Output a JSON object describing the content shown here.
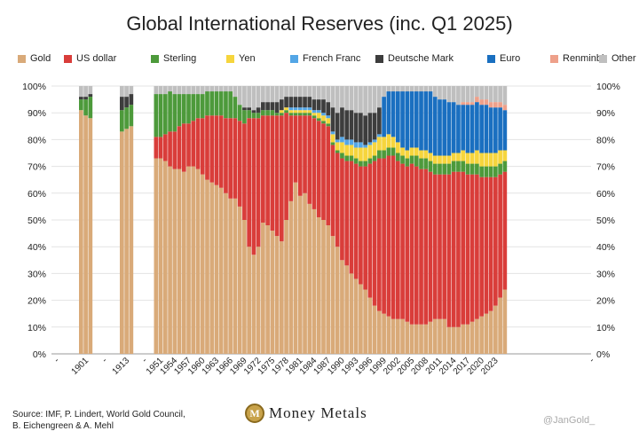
{
  "chart_data": {
    "type": "bar",
    "stacked": true,
    "title": "Global International Reserves (inc. Q1 2025)",
    "ylim": [
      0,
      100
    ],
    "y_ticks": [
      "0%",
      "10%",
      "20%",
      "30%",
      "40%",
      "50%",
      "60%",
      "70%",
      "80%",
      "90%",
      "100%"
    ],
    "x_tick_labels": [
      "-",
      "1901",
      "-",
      "1913",
      "-",
      "1951",
      "1954",
      "1957",
      "1960",
      "1963",
      "1966",
      "1969",
      "1972",
      "1975",
      "1978",
      "1981",
      "1984",
      "1987",
      "1990",
      "1993",
      "1996",
      "1999",
      "2002",
      "2005",
      "2008",
      "2011",
      "2014",
      "2017",
      "2020",
      "2023",
      "-"
    ],
    "legend_position": "top",
    "grid": true,
    "series": [
      {
        "name": "Gold",
        "color": "#d9aa79"
      },
      {
        "name": "US dollar",
        "color": "#d93d3a"
      },
      {
        "name": "Sterling",
        "color": "#4d9a3b"
      },
      {
        "name": "Yen",
        "color": "#f6d53d"
      },
      {
        "name": "French Franc",
        "color": "#53a6e6"
      },
      {
        "name": "Deutsche Mark",
        "color": "#3d3d3d"
      },
      {
        "name": "Euro",
        "color": "#1a6fc0"
      },
      {
        "name": "Renminbi",
        "color": "#eea08a"
      },
      {
        "name": "Other",
        "color": "#bfbfbf"
      }
    ],
    "bars": [
      {
        "year": 1899,
        "values": [
          91,
          0,
          4,
          0,
          0,
          1,
          0,
          0,
          4
        ]
      },
      {
        "year": 1900,
        "values": [
          89,
          0,
          6,
          0,
          0,
          1,
          0,
          0,
          4
        ]
      },
      {
        "year": 1901,
        "values": [
          88,
          0,
          8,
          0,
          0,
          1,
          0,
          0,
          3
        ]
      },
      {
        "year": 1911,
        "values": [
          83,
          0,
          8,
          0,
          0,
          5,
          0,
          0,
          4
        ]
      },
      {
        "year": 1912,
        "values": [
          84,
          0,
          8,
          0,
          0,
          4,
          0,
          0,
          4
        ]
      },
      {
        "year": 1913,
        "values": [
          85,
          0,
          8,
          0,
          0,
          4,
          0,
          0,
          3
        ]
      },
      {
        "year": 1950,
        "values": [
          73,
          8,
          16,
          0,
          0,
          0,
          0,
          0,
          3
        ]
      },
      {
        "year": 1951,
        "values": [
          73,
          8,
          16,
          0,
          0,
          0,
          0,
          0,
          3
        ]
      },
      {
        "year": 1952,
        "values": [
          72,
          10,
          15,
          0,
          0,
          0,
          0,
          0,
          3
        ]
      },
      {
        "year": 1953,
        "values": [
          70,
          13,
          15,
          0,
          0,
          0,
          0,
          0,
          2
        ]
      },
      {
        "year": 1954,
        "values": [
          69,
          14,
          14,
          0,
          0,
          0,
          0,
          0,
          3
        ]
      },
      {
        "year": 1955,
        "values": [
          69,
          16,
          12,
          0,
          0,
          0,
          0,
          0,
          3
        ]
      },
      {
        "year": 1956,
        "values": [
          68,
          18,
          11,
          0,
          0,
          0,
          0,
          0,
          3
        ]
      },
      {
        "year": 1957,
        "values": [
          70,
          16,
          11,
          0,
          0,
          0,
          0,
          0,
          3
        ]
      },
      {
        "year": 1958,
        "values": [
          70,
          17,
          10,
          0,
          0,
          0,
          0,
          0,
          3
        ]
      },
      {
        "year": 1959,
        "values": [
          69,
          19,
          9,
          0,
          0,
          0,
          0,
          0,
          3
        ]
      },
      {
        "year": 1960,
        "values": [
          67,
          21,
          9,
          0,
          0,
          0,
          0,
          0,
          3
        ]
      },
      {
        "year": 1961,
        "values": [
          65,
          24,
          9,
          0,
          0,
          0,
          0,
          0,
          2
        ]
      },
      {
        "year": 1962,
        "values": [
          64,
          25,
          9,
          0,
          0,
          0,
          0,
          0,
          2
        ]
      },
      {
        "year": 1963,
        "values": [
          63,
          26,
          9,
          0,
          0,
          0,
          0,
          0,
          2
        ]
      },
      {
        "year": 1964,
        "values": [
          62,
          27,
          9,
          0,
          0,
          0,
          0,
          0,
          2
        ]
      },
      {
        "year": 1965,
        "values": [
          60,
          28,
          10,
          0,
          0,
          0,
          0,
          0,
          2
        ]
      },
      {
        "year": 1966,
        "values": [
          58,
          30,
          10,
          0,
          0,
          0,
          0,
          0,
          2
        ]
      },
      {
        "year": 1967,
        "values": [
          58,
          30,
          8,
          0,
          0,
          0,
          0,
          0,
          4
        ]
      },
      {
        "year": 1968,
        "values": [
          55,
          32,
          6,
          0,
          0,
          0,
          0,
          0,
          7
        ]
      },
      {
        "year": 1969,
        "values": [
          50,
          36,
          5,
          0,
          0,
          1,
          0,
          0,
          8
        ]
      },
      {
        "year": 1970,
        "values": [
          40,
          48,
          3,
          0,
          0,
          1,
          0,
          0,
          8
        ]
      },
      {
        "year": 1971,
        "values": [
          37,
          51,
          2,
          0,
          0,
          1,
          0,
          0,
          9
        ]
      },
      {
        "year": 1972,
        "values": [
          40,
          48,
          2,
          0,
          0,
          2,
          0,
          0,
          8
        ]
      },
      {
        "year": 1973,
        "values": [
          49,
          40,
          2,
          0,
          0,
          3,
          0,
          0,
          6
        ]
      },
      {
        "year": 1974,
        "values": [
          48,
          41,
          2,
          0,
          0,
          3,
          0,
          0,
          6
        ]
      },
      {
        "year": 1975,
        "values": [
          46,
          43,
          2,
          0,
          0,
          3,
          0,
          0,
          6
        ]
      },
      {
        "year": 1976,
        "values": [
          44,
          45,
          1,
          0,
          0,
          4,
          0,
          0,
          6
        ]
      },
      {
        "year": 1977,
        "values": [
          42,
          47,
          1,
          1,
          0,
          4,
          0,
          0,
          5
        ]
      },
      {
        "year": 1978,
        "values": [
          50,
          40,
          1,
          1,
          0,
          4,
          0,
          0,
          4
        ]
      },
      {
        "year": 1979,
        "values": [
          57,
          32,
          1,
          1,
          1,
          4,
          0,
          0,
          4
        ]
      },
      {
        "year": 1980,
        "values": [
          64,
          25,
          1,
          1,
          1,
          4,
          0,
          0,
          4
        ]
      },
      {
        "year": 1981,
        "values": [
          59,
          30,
          1,
          1,
          1,
          4,
          0,
          0,
          4
        ]
      },
      {
        "year": 1982,
        "values": [
          60,
          29,
          1,
          1,
          1,
          4,
          0,
          0,
          4
        ]
      },
      {
        "year": 1983,
        "values": [
          56,
          33,
          1,
          1,
          1,
          4,
          0,
          0,
          4
        ]
      },
      {
        "year": 1984,
        "values": [
          54,
          34,
          1,
          1,
          1,
          4,
          0,
          0,
          5
        ]
      },
      {
        "year": 1985,
        "values": [
          51,
          36,
          1,
          2,
          1,
          4,
          0,
          0,
          5
        ]
      },
      {
        "year": 1986,
        "values": [
          50,
          36,
          1,
          2,
          1,
          5,
          0,
          0,
          5
        ]
      },
      {
        "year": 1987,
        "values": [
          48,
          37,
          1,
          2,
          1,
          5,
          0,
          0,
          6
        ]
      },
      {
        "year": 1988,
        "values": [
          44,
          34,
          1,
          3,
          1,
          9,
          0,
          0,
          8
        ]
      },
      {
        "year": 1989,
        "values": [
          40,
          35,
          1,
          3,
          1,
          10,
          0,
          0,
          10
        ]
      },
      {
        "year": 1990,
        "values": [
          35,
          38,
          2,
          4,
          2,
          11,
          0,
          0,
          8
        ]
      },
      {
        "year": 1991,
        "values": [
          33,
          39,
          2,
          4,
          2,
          11,
          0,
          0,
          9
        ]
      },
      {
        "year": 1992,
        "values": [
          30,
          42,
          2,
          4,
          2,
          11,
          0,
          0,
          9
        ]
      },
      {
        "year": 1993,
        "values": [
          28,
          43,
          2,
          4,
          2,
          11,
          0,
          0,
          10
        ]
      },
      {
        "year": 1994,
        "values": [
          26,
          44,
          2,
          5,
          2,
          11,
          0,
          0,
          10
        ]
      },
      {
        "year": 1995,
        "values": [
          24,
          46,
          2,
          5,
          1,
          11,
          0,
          0,
          11
        ]
      },
      {
        "year": 1996,
        "values": [
          21,
          50,
          2,
          5,
          1,
          11,
          0,
          0,
          10
        ]
      },
      {
        "year": 1997,
        "values": [
          18,
          54,
          2,
          5,
          1,
          10,
          0,
          0,
          10
        ]
      },
      {
        "year": 1998,
        "values": [
          16,
          57,
          3,
          5,
          1,
          10,
          0,
          0,
          8
        ]
      },
      {
        "year": 1999,
        "values": [
          15,
          58,
          3,
          5,
          0,
          0,
          15,
          0,
          4
        ]
      },
      {
        "year": 2000,
        "values": [
          14,
          60,
          3,
          5,
          0,
          0,
          16,
          0,
          2
        ]
      },
      {
        "year": 2001,
        "values": [
          13,
          61,
          3,
          4,
          0,
          0,
          17,
          0,
          2
        ]
      },
      {
        "year": 2002,
        "values": [
          13,
          59,
          3,
          4,
          0,
          0,
          19,
          0,
          2
        ]
      },
      {
        "year": 2003,
        "values": [
          13,
          58,
          3,
          3,
          0,
          0,
          21,
          0,
          2
        ]
      },
      {
        "year": 2004,
        "values": [
          12,
          58,
          3,
          3,
          0,
          0,
          22,
          0,
          2
        ]
      },
      {
        "year": 2005,
        "values": [
          11,
          60,
          3,
          3,
          0,
          0,
          21,
          0,
          2
        ]
      },
      {
        "year": 2006,
        "values": [
          11,
          59,
          4,
          3,
          0,
          0,
          21,
          0,
          2
        ]
      },
      {
        "year": 2007,
        "values": [
          11,
          58,
          4,
          3,
          0,
          0,
          22,
          0,
          2
        ]
      },
      {
        "year": 2008,
        "values": [
          11,
          58,
          4,
          3,
          0,
          0,
          22,
          0,
          2
        ]
      },
      {
        "year": 2009,
        "values": [
          12,
          56,
          4,
          3,
          0,
          0,
          23,
          0,
          2
        ]
      },
      {
        "year": 2010,
        "values": [
          13,
          54,
          4,
          3,
          0,
          0,
          22,
          0,
          4
        ]
      },
      {
        "year": 2011,
        "values": [
          13,
          54,
          4,
          3,
          0,
          0,
          21,
          0,
          5
        ]
      },
      {
        "year": 2012,
        "values": [
          13,
          54,
          4,
          3,
          0,
          0,
          21,
          0,
          5
        ]
      },
      {
        "year": 2013,
        "values": [
          10,
          57,
          4,
          3,
          0,
          0,
          20,
          0,
          6
        ]
      },
      {
        "year": 2014,
        "values": [
          10,
          58,
          4,
          3,
          0,
          0,
          19,
          0,
          6
        ]
      },
      {
        "year": 2015,
        "values": [
          10,
          58,
          4,
          3,
          0,
          0,
          18,
          0,
          7
        ]
      },
      {
        "year": 2016,
        "values": [
          11,
          57,
          4,
          4,
          0,
          0,
          17,
          1,
          6
        ]
      },
      {
        "year": 2017,
        "values": [
          11,
          56,
          4,
          4,
          0,
          0,
          18,
          1,
          6
        ]
      },
      {
        "year": 2018,
        "values": [
          12,
          55,
          4,
          4,
          0,
          0,
          18,
          1,
          6
        ]
      },
      {
        "year": 2019,
        "values": [
          13,
          54,
          4,
          5,
          0,
          0,
          18,
          2,
          4
        ]
      },
      {
        "year": 2020,
        "values": [
          14,
          52,
          4,
          5,
          0,
          0,
          18,
          2,
          5
        ]
      },
      {
        "year": 2021,
        "values": [
          15,
          51,
          4,
          5,
          0,
          0,
          18,
          2,
          5
        ]
      },
      {
        "year": 2022,
        "values": [
          16,
          50,
          4,
          5,
          0,
          0,
          17,
          2,
          6
        ]
      },
      {
        "year": 2023,
        "values": [
          18,
          48,
          4,
          5,
          0,
          0,
          17,
          2,
          6
        ]
      },
      {
        "year": 2024,
        "values": [
          21,
          46,
          4,
          5,
          0,
          0,
          16,
          2,
          6
        ]
      },
      {
        "year": 2025,
        "values": [
          24,
          44,
          4,
          4,
          0,
          0,
          15,
          2,
          7
        ]
      }
    ]
  },
  "footer": {
    "source": "Source: IMF, P. Lindert, World Gold Council, B. Eichengreen & A. Mehl",
    "brand": "Money Metals",
    "watermark": "@JanGold_"
  }
}
